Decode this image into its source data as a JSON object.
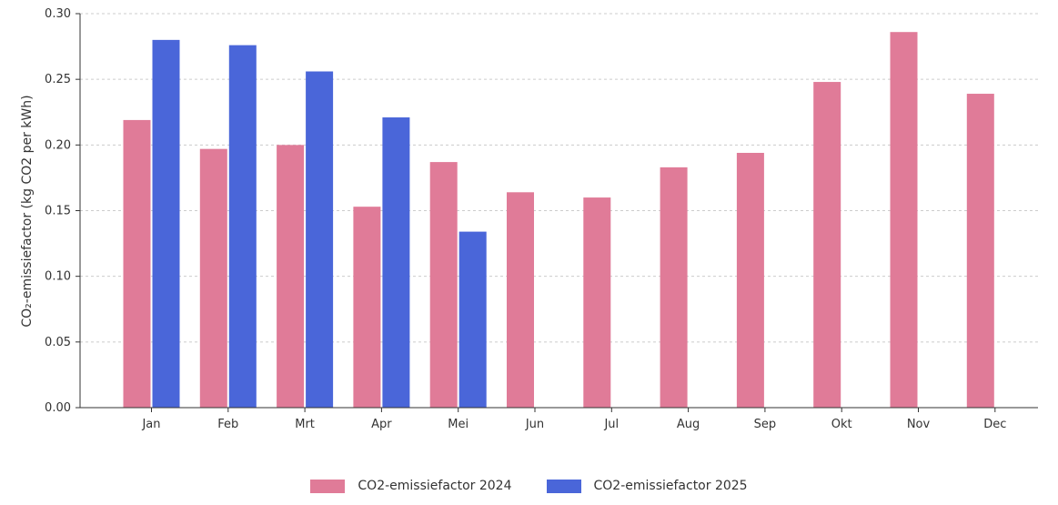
{
  "chart_data": {
    "type": "bar",
    "ylabel": "CO₂-emissiefactor (kg CO2 per kWh)",
    "ylim": [
      0,
      0.3
    ],
    "yticks": [
      "0.00",
      "0.05",
      "0.10",
      "0.15",
      "0.20",
      "0.25",
      "0.30"
    ],
    "grid": true,
    "legend_position": "bottom-center",
    "categories": [
      "Jan",
      "Feb",
      "Mrt",
      "Apr",
      "Mei",
      "Jun",
      "Jul",
      "Aug",
      "Sep",
      "Okt",
      "Nov",
      "Dec"
    ],
    "series": [
      {
        "name": "CO2-emissiefactor 2024",
        "color": "#e07b98",
        "values": [
          0.219,
          0.197,
          0.2,
          0.153,
          0.187,
          0.164,
          0.16,
          0.183,
          0.194,
          0.248,
          0.286,
          0.239
        ]
      },
      {
        "name": "CO2-emissiefactor 2025",
        "color": "#4a66d9",
        "values": [
          0.28,
          0.276,
          0.256,
          0.221,
          0.134,
          null,
          null,
          null,
          null,
          null,
          null,
          null
        ]
      }
    ]
  }
}
